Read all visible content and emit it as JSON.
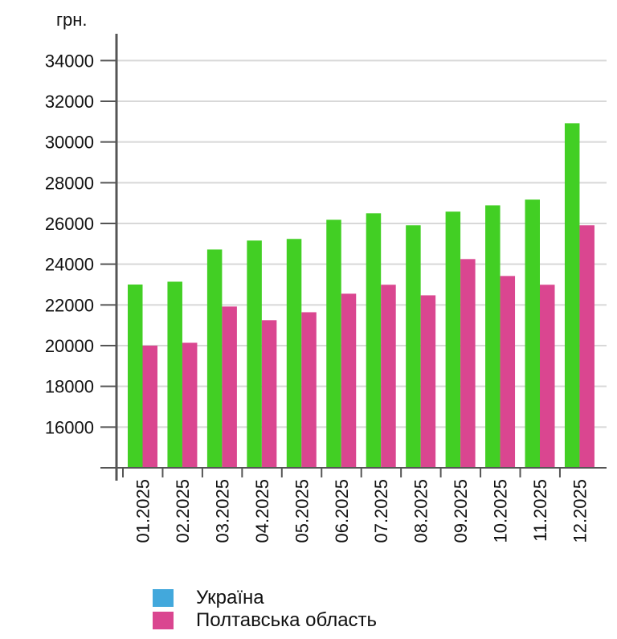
{
  "chart_data": {
    "type": "bar",
    "unit_label": "грн.",
    "categories": [
      "01.2025",
      "02.2025",
      "03.2025",
      "04.2025",
      "05.2025",
      "06.2025",
      "07.2025",
      "08.2025",
      "09.2025",
      "10.2025",
      "11.2025",
      "12.2025"
    ],
    "series": [
      {
        "name": "Україна",
        "bar_color": "#42cf24",
        "legend_color": "#42a8dc",
        "values": [
          23000,
          23140,
          24720,
          25160,
          25240,
          26180,
          26500,
          25910,
          26580,
          26890,
          27170,
          30920
        ]
      },
      {
        "name": "Полтавська область",
        "bar_color": "#da4690",
        "legend_color": "#da4690",
        "values": [
          20000,
          20140,
          21920,
          21250,
          21640,
          22550,
          22990,
          22470,
          24250,
          23420,
          22990,
          25910
        ]
      }
    ],
    "yticks": [
      16000,
      18000,
      20000,
      22000,
      24000,
      26000,
      28000,
      30000,
      32000,
      34000
    ],
    "ylim": [
      14000,
      35000
    ],
    "grid": true,
    "legend_position": "bottom"
  }
}
